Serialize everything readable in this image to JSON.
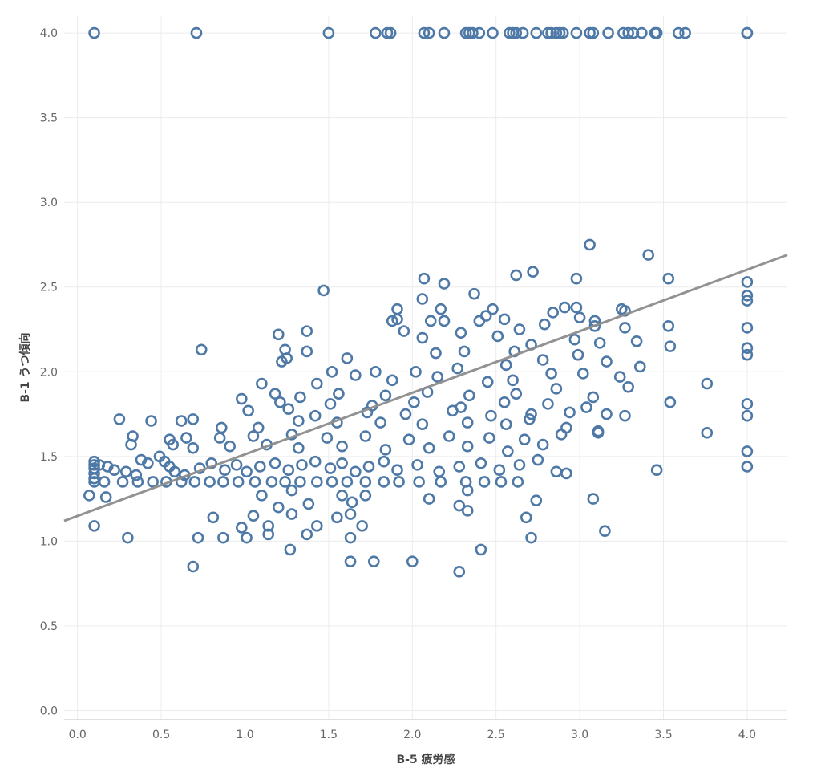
{
  "chart_data": {
    "type": "scatter",
    "xlabel": "B-5 疲労感",
    "ylabel": "B-1 うつ傾向",
    "xlim": [
      -0.08,
      4.24
    ],
    "ylim": [
      -0.05,
      4.1
    ],
    "x_ticks": [
      "0.0",
      "0.5",
      "1.0",
      "1.5",
      "2.0",
      "2.5",
      "3.0",
      "3.5",
      "4.0"
    ],
    "y_ticks": [
      "0.0",
      "0.5",
      "1.0",
      "1.5",
      "2.0",
      "2.5",
      "3.0",
      "3.5",
      "4.0"
    ],
    "grid": true,
    "marker": "hollow-circle",
    "point_color": "#4e79a7",
    "trend_color": "#8c8c8c",
    "trendline": {
      "type": "linear",
      "x0": -0.08,
      "y0": 1.12,
      "x1": 4.24,
      "y1": 2.69
    },
    "points": [
      [
        0.1,
        4.0
      ],
      [
        0.71,
        4.0
      ],
      [
        1.5,
        4.0
      ],
      [
        1.78,
        4.0
      ],
      [
        1.85,
        4.0
      ],
      [
        1.87,
        4.0
      ],
      [
        2.07,
        4.0
      ],
      [
        2.1,
        4.0
      ],
      [
        2.19,
        4.0
      ],
      [
        2.32,
        4.0
      ],
      [
        2.34,
        4.0
      ],
      [
        2.36,
        4.0
      ],
      [
        2.4,
        4.0
      ],
      [
        2.48,
        4.0
      ],
      [
        2.58,
        4.0
      ],
      [
        2.6,
        4.0
      ],
      [
        2.62,
        4.0
      ],
      [
        2.66,
        4.0
      ],
      [
        2.74,
        4.0
      ],
      [
        2.81,
        4.0
      ],
      [
        2.83,
        4.0
      ],
      [
        2.86,
        4.0
      ],
      [
        2.88,
        4.0
      ],
      [
        2.9,
        4.0
      ],
      [
        2.98,
        4.0
      ],
      [
        3.06,
        4.0
      ],
      [
        3.08,
        4.0
      ],
      [
        3.17,
        4.0
      ],
      [
        3.26,
        4.0
      ],
      [
        3.29,
        4.0
      ],
      [
        3.32,
        4.0
      ],
      [
        3.37,
        4.0
      ],
      [
        3.45,
        4.0
      ],
      [
        3.46,
        4.0
      ],
      [
        3.59,
        4.0
      ],
      [
        3.63,
        4.0
      ],
      [
        4.0,
        4.0
      ],
      [
        4.0,
        4.0
      ],
      [
        3.06,
        2.75
      ],
      [
        3.41,
        2.69
      ],
      [
        2.62,
        2.57
      ],
      [
        2.72,
        2.59
      ],
      [
        2.98,
        2.55
      ],
      [
        3.53,
        2.55
      ],
      [
        2.07,
        2.55
      ],
      [
        2.19,
        2.52
      ],
      [
        4.0,
        2.53
      ],
      [
        1.47,
        2.48
      ],
      [
        2.37,
        2.46
      ],
      [
        4.0,
        2.45
      ],
      [
        4.0,
        2.42
      ],
      [
        1.91,
        2.37
      ],
      [
        2.17,
        2.37
      ],
      [
        2.48,
        2.37
      ],
      [
        2.84,
        2.35
      ],
      [
        2.91,
        2.38
      ],
      [
        2.98,
        2.38
      ],
      [
        3.25,
        2.37
      ],
      [
        3.27,
        2.36
      ],
      [
        1.88,
        2.3
      ],
      [
        1.91,
        2.31
      ],
      [
        2.06,
        2.43
      ],
      [
        2.11,
        2.3
      ],
      [
        2.19,
        2.3
      ],
      [
        2.4,
        2.3
      ],
      [
        2.44,
        2.33
      ],
      [
        2.55,
        2.31
      ],
      [
        2.79,
        2.28
      ],
      [
        3.09,
        2.3
      ],
      [
        3.0,
        2.32
      ],
      [
        3.53,
        2.27
      ],
      [
        4.0,
        2.26
      ],
      [
        1.2,
        2.22
      ],
      [
        1.37,
        2.24
      ],
      [
        1.95,
        2.24
      ],
      [
        2.29,
        2.23
      ],
      [
        2.51,
        2.21
      ],
      [
        2.64,
        2.25
      ],
      [
        3.09,
        2.27
      ],
      [
        3.27,
        2.26
      ],
      [
        1.24,
        2.13
      ],
      [
        1.25,
        2.08
      ],
      [
        1.37,
        2.12
      ],
      [
        0.74,
        2.13
      ],
      [
        1.61,
        2.08
      ],
      [
        2.06,
        2.2
      ],
      [
        2.14,
        2.11
      ],
      [
        2.31,
        2.12
      ],
      [
        2.61,
        2.12
      ],
      [
        2.71,
        2.16
      ],
      [
        2.97,
        2.19
      ],
      [
        3.12,
        2.17
      ],
      [
        3.34,
        2.18
      ],
      [
        3.54,
        2.15
      ],
      [
        4.0,
        2.14
      ],
      [
        4.0,
        2.1
      ],
      [
        1.22,
        2.06
      ],
      [
        1.52,
        2.0
      ],
      [
        1.78,
        2.0
      ],
      [
        2.02,
        2.0
      ],
      [
        2.27,
        2.02
      ],
      [
        2.56,
        2.04
      ],
      [
        2.78,
        2.07
      ],
      [
        2.99,
        2.1
      ],
      [
        3.16,
        2.06
      ],
      [
        3.36,
        2.03
      ],
      [
        2.6,
        1.95
      ],
      [
        1.88,
        1.95
      ],
      [
        1.66,
        1.98
      ],
      [
        1.43,
        1.93
      ],
      [
        1.1,
        1.93
      ],
      [
        2.15,
        1.97
      ],
      [
        2.45,
        1.94
      ],
      [
        2.83,
        1.99
      ],
      [
        3.02,
        1.99
      ],
      [
        3.24,
        1.97
      ],
      [
        3.76,
        1.93
      ],
      [
        1.18,
        1.87
      ],
      [
        1.33,
        1.85
      ],
      [
        1.56,
        1.87
      ],
      [
        1.84,
        1.86
      ],
      [
        2.09,
        1.88
      ],
      [
        2.34,
        1.86
      ],
      [
        2.62,
        1.87
      ],
      [
        2.86,
        1.9
      ],
      [
        3.08,
        1.85
      ],
      [
        3.29,
        1.91
      ],
      [
        4.0,
        1.81
      ],
      [
        0.98,
        1.84
      ],
      [
        1.21,
        1.82
      ],
      [
        1.51,
        1.81
      ],
      [
        1.76,
        1.8
      ],
      [
        2.01,
        1.82
      ],
      [
        2.29,
        1.79
      ],
      [
        2.55,
        1.82
      ],
      [
        2.81,
        1.81
      ],
      [
        3.04,
        1.79
      ],
      [
        3.54,
        1.82
      ],
      [
        1.02,
        1.77
      ],
      [
        1.26,
        1.78
      ],
      [
        1.42,
        1.74
      ],
      [
        1.73,
        1.76
      ],
      [
        1.96,
        1.75
      ],
      [
        2.24,
        1.77
      ],
      [
        2.47,
        1.74
      ],
      [
        2.71,
        1.75
      ],
      [
        2.94,
        1.76
      ],
      [
        3.16,
        1.75
      ],
      [
        3.27,
        1.74
      ],
      [
        4.0,
        1.74
      ],
      [
        0.25,
        1.72
      ],
      [
        0.44,
        1.71
      ],
      [
        0.62,
        1.71
      ],
      [
        0.69,
        1.72
      ],
      [
        0.86,
        1.67
      ],
      [
        1.08,
        1.67
      ],
      [
        1.32,
        1.71
      ],
      [
        1.55,
        1.7
      ],
      [
        1.81,
        1.7
      ],
      [
        2.06,
        1.69
      ],
      [
        2.33,
        1.7
      ],
      [
        2.56,
        1.69
      ],
      [
        2.7,
        1.72
      ],
      [
        2.92,
        1.67
      ],
      [
        3.11,
        1.64
      ],
      [
        3.11,
        1.65
      ],
      [
        3.76,
        1.64
      ],
      [
        0.33,
        1.62
      ],
      [
        0.55,
        1.6
      ],
      [
        0.65,
        1.61
      ],
      [
        0.85,
        1.61
      ],
      [
        1.05,
        1.62
      ],
      [
        1.28,
        1.63
      ],
      [
        1.49,
        1.61
      ],
      [
        1.72,
        1.62
      ],
      [
        1.98,
        1.6
      ],
      [
        2.22,
        1.62
      ],
      [
        2.46,
        1.61
      ],
      [
        2.67,
        1.6
      ],
      [
        2.89,
        1.63
      ],
      [
        0.32,
        1.57
      ],
      [
        0.49,
        1.5
      ],
      [
        0.57,
        1.57
      ],
      [
        0.69,
        1.55
      ],
      [
        0.91,
        1.56
      ],
      [
        1.13,
        1.57
      ],
      [
        1.32,
        1.55
      ],
      [
        1.58,
        1.56
      ],
      [
        1.84,
        1.54
      ],
      [
        2.1,
        1.55
      ],
      [
        2.33,
        1.56
      ],
      [
        2.57,
        1.53
      ],
      [
        2.78,
        1.57
      ],
      [
        4.0,
        1.53
      ],
      [
        0.1,
        1.47
      ],
      [
        0.1,
        1.45
      ],
      [
        0.1,
        1.43
      ],
      [
        0.1,
        1.4
      ],
      [
        0.1,
        1.37
      ],
      [
        0.1,
        1.35
      ],
      [
        0.13,
        1.45
      ],
      [
        0.18,
        1.44
      ],
      [
        0.22,
        1.42
      ],
      [
        0.29,
        1.41
      ],
      [
        0.35,
        1.39
      ],
      [
        0.38,
        1.48
      ],
      [
        0.42,
        1.46
      ],
      [
        0.52,
        1.47
      ],
      [
        0.55,
        1.44
      ],
      [
        0.58,
        1.41
      ],
      [
        0.64,
        1.39
      ],
      [
        0.73,
        1.43
      ],
      [
        0.8,
        1.46
      ],
      [
        0.88,
        1.42
      ],
      [
        0.95,
        1.45
      ],
      [
        1.01,
        1.41
      ],
      [
        1.09,
        1.44
      ],
      [
        1.18,
        1.46
      ],
      [
        1.26,
        1.42
      ],
      [
        1.34,
        1.45
      ],
      [
        1.42,
        1.47
      ],
      [
        1.51,
        1.43
      ],
      [
        1.58,
        1.46
      ],
      [
        1.66,
        1.41
      ],
      [
        1.74,
        1.44
      ],
      [
        1.83,
        1.47
      ],
      [
        1.91,
        1.42
      ],
      [
        2.03,
        1.45
      ],
      [
        2.16,
        1.41
      ],
      [
        2.28,
        1.44
      ],
      [
        2.41,
        1.46
      ],
      [
        2.52,
        1.42
      ],
      [
        2.64,
        1.45
      ],
      [
        2.75,
        1.48
      ],
      [
        2.86,
        1.41
      ],
      [
        2.92,
        1.4
      ],
      [
        4.0,
        1.44
      ],
      [
        0.16,
        1.35
      ],
      [
        0.27,
        1.35
      ],
      [
        0.36,
        1.35
      ],
      [
        0.45,
        1.35
      ],
      [
        0.53,
        1.35
      ],
      [
        0.62,
        1.35
      ],
      [
        0.7,
        1.35
      ],
      [
        0.79,
        1.35
      ],
      [
        0.87,
        1.35
      ],
      [
        0.96,
        1.35
      ],
      [
        1.06,
        1.35
      ],
      [
        1.16,
        1.35
      ],
      [
        1.24,
        1.35
      ],
      [
        1.33,
        1.35
      ],
      [
        1.43,
        1.35
      ],
      [
        1.52,
        1.35
      ],
      [
        1.61,
        1.35
      ],
      [
        1.72,
        1.35
      ],
      [
        1.83,
        1.35
      ],
      [
        1.92,
        1.35
      ],
      [
        2.04,
        1.35
      ],
      [
        2.17,
        1.35
      ],
      [
        2.32,
        1.35
      ],
      [
        2.43,
        1.35
      ],
      [
        2.53,
        1.35
      ],
      [
        2.63,
        1.35
      ],
      [
        3.46,
        1.42
      ],
      [
        0.07,
        1.27
      ],
      [
        1.1,
        1.27
      ],
      [
        1.28,
        1.3
      ],
      [
        1.58,
        1.27
      ],
      [
        1.72,
        1.27
      ],
      [
        2.1,
        1.25
      ],
      [
        2.33,
        1.3
      ],
      [
        2.74,
        1.24
      ],
      [
        3.08,
        1.25
      ],
      [
        0.17,
        1.26
      ],
      [
        1.2,
        1.2
      ],
      [
        1.38,
        1.22
      ],
      [
        1.64,
        1.23
      ],
      [
        2.28,
        1.21
      ],
      [
        2.33,
        1.18
      ],
      [
        0.81,
        1.14
      ],
      [
        1.05,
        1.15
      ],
      [
        1.28,
        1.16
      ],
      [
        1.55,
        1.14
      ],
      [
        1.63,
        1.16
      ],
      [
        2.68,
        1.14
      ],
      [
        0.1,
        1.09
      ],
      [
        0.98,
        1.08
      ],
      [
        1.14,
        1.09
      ],
      [
        1.43,
        1.09
      ],
      [
        1.7,
        1.09
      ],
      [
        0.3,
        1.02
      ],
      [
        0.72,
        1.02
      ],
      [
        0.87,
        1.02
      ],
      [
        1.01,
        1.02
      ],
      [
        1.14,
        1.04
      ],
      [
        1.37,
        1.04
      ],
      [
        1.63,
        1.02
      ],
      [
        2.71,
        1.02
      ],
      [
        3.15,
        1.06
      ],
      [
        1.27,
        0.95
      ],
      [
        2.41,
        0.95
      ],
      [
        0.69,
        0.85
      ],
      [
        1.63,
        0.88
      ],
      [
        1.77,
        0.88
      ],
      [
        2.0,
        0.88
      ],
      [
        2.28,
        0.82
      ]
    ]
  }
}
